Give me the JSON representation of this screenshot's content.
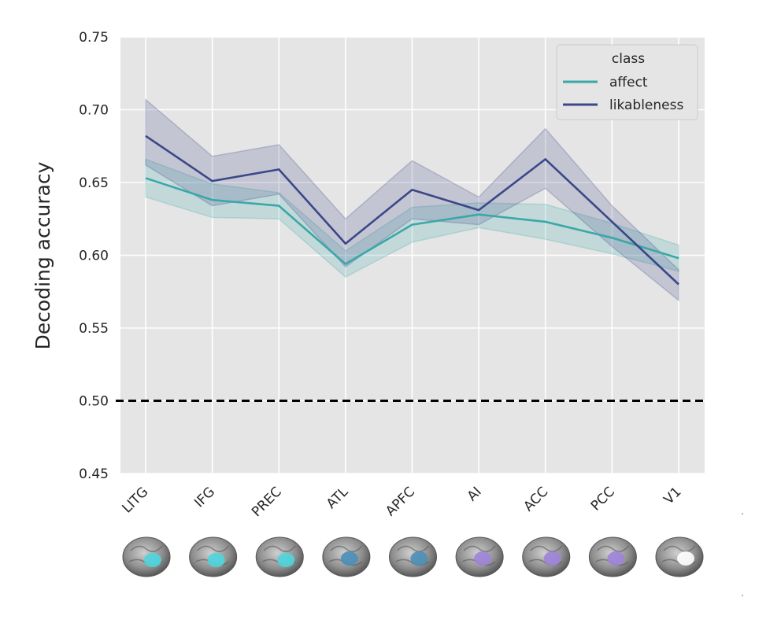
{
  "chart_data": {
    "type": "line",
    "title": "",
    "xlabel": "",
    "ylabel": "Decoding accuracy",
    "categories": [
      "LITG",
      "IFG",
      "PREC",
      "ATL",
      "APFC",
      "AI",
      "ACC",
      "PCC",
      "V1"
    ],
    "ylim": [
      0.45,
      0.75
    ],
    "yticks": [
      "0.45",
      "0.50",
      "0.55",
      "0.60",
      "0.65",
      "0.70",
      "0.75"
    ],
    "grid": true,
    "background": "#e5e5e5",
    "chance_line": {
      "value": 0.5,
      "style": "dashed",
      "color": "#000000"
    },
    "legend": {
      "title": "class",
      "placement": "top-right"
    },
    "series": [
      {
        "name": "affect",
        "color": "#3aa8a8",
        "values": [
          0.653,
          0.638,
          0.634,
          0.594,
          0.621,
          0.628,
          0.623,
          0.612,
          0.598
        ],
        "ci_low": [
          0.64,
          0.626,
          0.625,
          0.585,
          0.609,
          0.619,
          0.611,
          0.601,
          0.589
        ],
        "ci_high": [
          0.666,
          0.649,
          0.643,
          0.603,
          0.633,
          0.636,
          0.635,
          0.622,
          0.607
        ]
      },
      {
        "name": "likableness",
        "color": "#3b4788",
        "values": [
          0.682,
          0.651,
          0.659,
          0.608,
          0.645,
          0.631,
          0.666,
          0.623,
          0.58
        ],
        "ci_low": [
          0.662,
          0.634,
          0.642,
          0.592,
          0.625,
          0.621,
          0.646,
          0.606,
          0.569
        ],
        "ci_high": [
          0.707,
          0.668,
          0.676,
          0.625,
          0.665,
          0.64,
          0.687,
          0.634,
          0.59
        ]
      }
    ],
    "brain_icons": [
      {
        "region": "LITG",
        "color": "#4dd6dd"
      },
      {
        "region": "IFG",
        "color": "#4dd6dd"
      },
      {
        "region": "PREC",
        "color": "#4dd6dd"
      },
      {
        "region": "ATL",
        "color": "#4a8fb8"
      },
      {
        "region": "APFC",
        "color": "#4a8fb8"
      },
      {
        "region": "AI",
        "color": "#a084d8"
      },
      {
        "region": "ACC",
        "color": "#a084d8"
      },
      {
        "region": "PCC",
        "color": "#a084d8"
      },
      {
        "region": "V1",
        "color": "#ffffff"
      }
    ]
  }
}
